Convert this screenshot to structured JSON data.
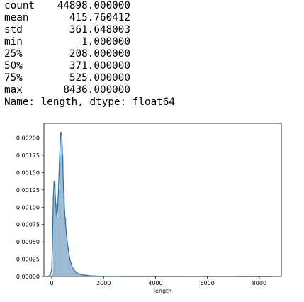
{
  "output": {
    "rows": [
      {
        "label": "count",
        "value": "44898.000000"
      },
      {
        "label": "mean",
        "value": "415.760412"
      },
      {
        "label": "std",
        "value": "361.648003"
      },
      {
        "label": "min",
        "value": "1.000000"
      },
      {
        "label": "25%",
        "value": "208.000000"
      },
      {
        "label": "50%",
        "value": "371.000000"
      },
      {
        "label": "75%",
        "value": "525.000000"
      },
      {
        "label": "max",
        "value": "8436.000000"
      }
    ],
    "footer": "Name: length, dtype: float64"
  },
  "chart_data": {
    "type": "bar",
    "xlabel": "length",
    "ylabel": "",
    "xlim": [
      -300,
      8850
    ],
    "ylim": [
      0,
      0.00221
    ],
    "xticks": [
      0,
      2000,
      4000,
      6000,
      8000
    ],
    "yticks": [
      0.0,
      0.00025,
      0.0005,
      0.00075,
      0.001,
      0.00125,
      0.0015,
      0.00175,
      0.002
    ],
    "ytick_labels": [
      "0.00000",
      "0.00025",
      "0.00050",
      "0.00075",
      "0.00100",
      "0.00125",
      "0.00150",
      "0.00175",
      "0.00200"
    ],
    "bins": [
      {
        "x0": 0,
        "x1": 50,
        "y": 3e-05
      },
      {
        "x0": 50,
        "x1": 100,
        "y": 0.0012
      },
      {
        "x0": 100,
        "x1": 150,
        "y": 0.00135
      },
      {
        "x0": 150,
        "x1": 200,
        "y": 0.00105
      },
      {
        "x0": 200,
        "x1": 250,
        "y": 0.00085
      },
      {
        "x0": 250,
        "x1": 300,
        "y": 0.00125
      },
      {
        "x0": 300,
        "x1": 350,
        "y": 0.00175
      },
      {
        "x0": 350,
        "x1": 400,
        "y": 0.002
      },
      {
        "x0": 400,
        "x1": 450,
        "y": 0.00175
      },
      {
        "x0": 450,
        "x1": 500,
        "y": 0.0012
      },
      {
        "x0": 500,
        "x1": 550,
        "y": 0.00085
      },
      {
        "x0": 550,
        "x1": 600,
        "y": 0.0006
      },
      {
        "x0": 600,
        "x1": 650,
        "y": 0.00042
      },
      {
        "x0": 650,
        "x1": 700,
        "y": 0.0003
      },
      {
        "x0": 700,
        "x1": 750,
        "y": 0.0002
      },
      {
        "x0": 750,
        "x1": 800,
        "y": 0.00015
      },
      {
        "x0": 800,
        "x1": 850,
        "y": 0.00012
      },
      {
        "x0": 850,
        "x1": 900,
        "y": 0.0001
      },
      {
        "x0": 900,
        "x1": 950,
        "y": 8e-05
      },
      {
        "x0": 950,
        "x1": 1000,
        "y": 6e-05
      },
      {
        "x0": 1000,
        "x1": 1100,
        "y": 4.5e-05
      },
      {
        "x0": 1100,
        "x1": 1200,
        "y": 3.5e-05
      },
      {
        "x0": 1200,
        "x1": 1400,
        "y": 2.5e-05
      },
      {
        "x0": 1400,
        "x1": 1700,
        "y": 1.5e-05
      },
      {
        "x0": 1700,
        "x1": 2200,
        "y": 8e-06
      },
      {
        "x0": 2200,
        "x1": 3500,
        "y": 3e-06
      }
    ],
    "kde": {
      "x": [
        -150,
        -50,
        0,
        30,
        60,
        90,
        110,
        130,
        150,
        170,
        200,
        230,
        260,
        290,
        320,
        350,
        380,
        400,
        420,
        450,
        480,
        520,
        560,
        600,
        650,
        700,
        760,
        820,
        900,
        1000,
        1150,
        1300,
        1500,
        1800,
        2200,
        3000,
        4000,
        5000,
        6000,
        7000,
        8000,
        8500
      ],
      "y": [
        0,
        2e-05,
        0.0001,
        0.0005,
        0.0011,
        0.00138,
        0.00133,
        0.0012,
        0.00108,
        0.00095,
        0.00085,
        0.00098,
        0.00125,
        0.00158,
        0.00188,
        0.00208,
        0.00207,
        0.00193,
        0.00168,
        0.00132,
        0.00105,
        0.00082,
        0.00064,
        0.0005,
        0.00036,
        0.00025,
        0.00017,
        0.00011,
        7e-05,
        4.5e-05,
        2.5e-05,
        1.5e-05,
        9e-06,
        5e-06,
        3e-06,
        1.5e-06,
        1e-06,
        8e-07,
        6e-07,
        4e-07,
        2e-07,
        0
      ]
    },
    "colors": {
      "bar_fill": "#a2bdd6",
      "bar_edge": "#8fb0d0",
      "kde_line": "#2a6fa8",
      "axis": "#000000"
    }
  }
}
